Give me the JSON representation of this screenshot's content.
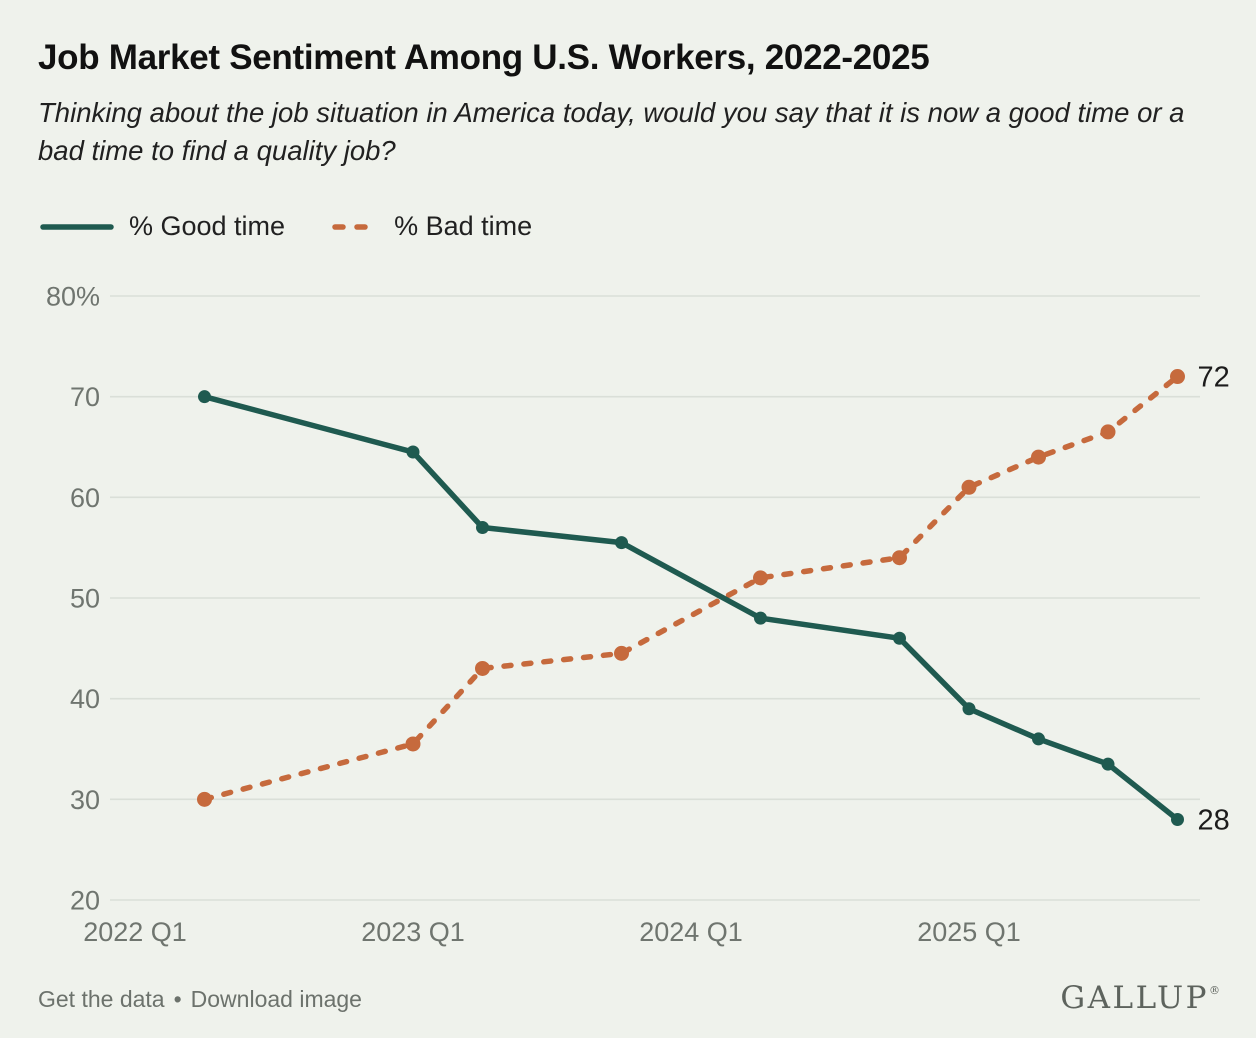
{
  "header": {
    "title": "Job Market Sentiment Among U.S. Workers, 2022-2025",
    "subtitle": "Thinking about the job situation in America today, would you say that it is now a good time or a bad time to find a quality job?"
  },
  "colors": {
    "background": "#eff2ec",
    "good": "#1f5a50",
    "bad": "#c66a3d",
    "gridline": "#dadfd8",
    "axis_text": "#6f756f",
    "end_label_text": "#1c1c1c"
  },
  "chart_data": {
    "type": "line",
    "title": "Job Market Sentiment Among U.S. Workers, 2022-2025",
    "x": [
      "2022 Q2",
      "2023 Q1",
      "2023 Q2",
      "2023 Q4",
      "2024 Q2",
      "2024 Q4",
      "2025 Q1",
      "2025 Q2",
      "2025 Q3",
      "2025 Q4"
    ],
    "x_quarter_index": [
      1,
      4,
      5,
      7,
      9,
      11,
      12,
      13,
      14,
      15
    ],
    "series": [
      {
        "name": "% Good time",
        "style": "solid",
        "color": "#1f5a50",
        "values": [
          70,
          64.5,
          57,
          55.5,
          48,
          46,
          39,
          36,
          33.5,
          28
        ],
        "end_label": "28"
      },
      {
        "name": "% Bad time",
        "style": "dashed",
        "color": "#c66a3d",
        "values": [
          30,
          35.5,
          43,
          44.5,
          52,
          54,
          61,
          64,
          66.5,
          72
        ],
        "end_label": "72"
      }
    ],
    "ylim": [
      20,
      80
    ],
    "y_ticks": [
      {
        "value": 80,
        "label": "80%"
      },
      {
        "value": 70,
        "label": "70"
      },
      {
        "value": 60,
        "label": "60"
      },
      {
        "value": 50,
        "label": "50"
      },
      {
        "value": 40,
        "label": "40"
      },
      {
        "value": 30,
        "label": "30"
      },
      {
        "value": 20,
        "label": "20"
      }
    ],
    "x_ticks": [
      {
        "quarter_index": 0,
        "label": "2022 Q1"
      },
      {
        "quarter_index": 4,
        "label": "2023 Q1"
      },
      {
        "quarter_index": 8,
        "label": "2024 Q1"
      },
      {
        "quarter_index": 12,
        "label": "2025 Q1"
      }
    ],
    "grid": "horizontal",
    "legend_position": "top-left"
  },
  "footer": {
    "get_data_label": "Get the data",
    "separator": "•",
    "download_label": "Download image",
    "brand": "GALLUP",
    "brand_mark": "®"
  }
}
